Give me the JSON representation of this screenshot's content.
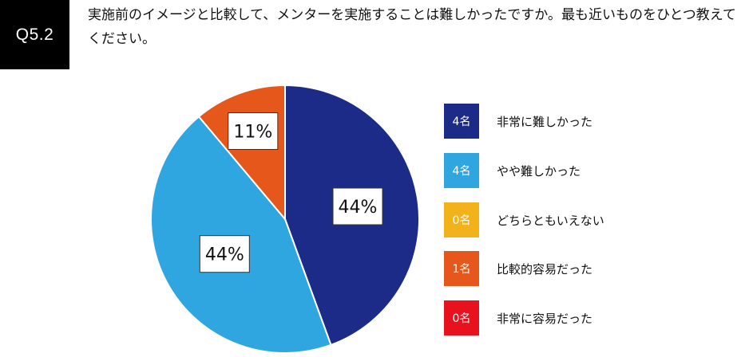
{
  "badge": "Q5.2",
  "question": "実施前のイメージと比較して、メンターを実施することは難しかったですか。最も近いものをひとつ教えてください。",
  "chart_data": {
    "type": "pie",
    "title": "",
    "slices": [
      {
        "label": "非常に難しかった",
        "count": "4名",
        "value": 44,
        "display": "44%",
        "color": "#1b2b87"
      },
      {
        "label": "やや難しかった",
        "count": "4名",
        "value": 44,
        "display": "44%",
        "color": "#2fa6e0"
      },
      {
        "label": "どちらともいえない",
        "count": "0名",
        "value": 0,
        "display": "",
        "color": "#f2b21c"
      },
      {
        "label": "比較的容易だった",
        "count": "1名",
        "value": 11,
        "display": "11%",
        "color": "#e5571a"
      },
      {
        "label": "非常に容易だった",
        "count": "0名",
        "value": 0,
        "display": "",
        "color": "#e8121e"
      }
    ],
    "legend_position": "right"
  }
}
